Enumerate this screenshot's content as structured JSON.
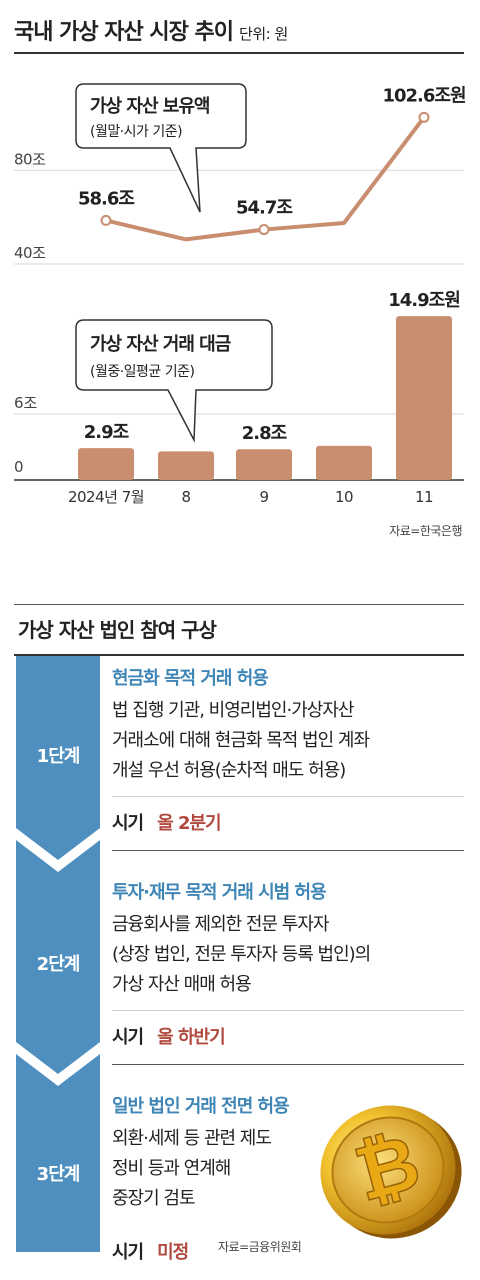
{
  "header": {
    "title": "국내 가상 자산 시장 추이",
    "unit": "단위: 원"
  },
  "chart_data": [
    {
      "type": "line",
      "x": [
        "2024년 7월",
        "8",
        "9",
        "10",
        "11"
      ],
      "values": [
        58.6,
        50.5,
        54.7,
        57.5,
        102.6
      ],
      "data_labels": [
        "58.6조",
        "",
        "54.7조",
        "",
        "102.6조원"
      ],
      "y_ticks": [
        {
          "value": 40,
          "label": "40조"
        },
        {
          "value": 80,
          "label": "80조"
        }
      ],
      "ylim": [
        40,
        110
      ],
      "callout": {
        "title": "가상 자산 보유액",
        "subtitle": "(월말·시가 기준)"
      },
      "color": "#c98d6f",
      "grid": true
    },
    {
      "type": "bar",
      "categories": [
        "2024년 7월",
        "8",
        "9",
        "10",
        "11"
      ],
      "values": [
        2.9,
        2.6,
        2.8,
        3.1,
        14.9
      ],
      "data_labels": [
        "2.9조",
        "",
        "2.8조",
        "",
        "14.9조원"
      ],
      "y_ticks": [
        {
          "value": 0,
          "label": "0"
        },
        {
          "value": 6,
          "label": "6조"
        }
      ],
      "ylim": [
        0,
        16
      ],
      "callout": {
        "title": "가상 자산 거래 대금",
        "subtitle": "(월중·일평균 기준)"
      },
      "color": "#c98d6f",
      "grid": true
    }
  ],
  "source1": "자료=한국은행",
  "plan": {
    "title": "가상 자산 법인 참여 구상",
    "rail_color": "#4f8fbf",
    "highlight_color": "#3f86b6",
    "when_color": "#b04a3f",
    "steps": [
      {
        "label": "1단계",
        "head": "현금화 목적 거래 허용",
        "lines": [
          "법 집행 기관, 비영리법인·가상자산",
          "거래소에 대해 현금화 목적 법인 계좌",
          "개설 우선 허용(순차적 매도 허용)"
        ],
        "when_label": "시기",
        "when_value": "올 2분기"
      },
      {
        "label": "2단계",
        "head": "투자·재무 목적 거래 시범 허용",
        "lines": [
          "금융회사를 제외한 전문 투자자",
          "(상장 법인, 전문 투자자 등록 법인)의",
          "가상 자산 매매 허용"
        ],
        "when_label": "시기",
        "when_value": "올 하반기"
      },
      {
        "label": "3단계",
        "head": "일반 법인 거래 전면 허용",
        "lines": [
          "외환·세제 등 관련 제도",
          "정비 등과 연계해",
          "중장기 검토"
        ],
        "when_label": "시기",
        "when_value": "미정"
      }
    ]
  },
  "source2": "자료=금융위원회",
  "coin": {
    "icon": "bitcoin-icon",
    "symbol": "₿"
  }
}
